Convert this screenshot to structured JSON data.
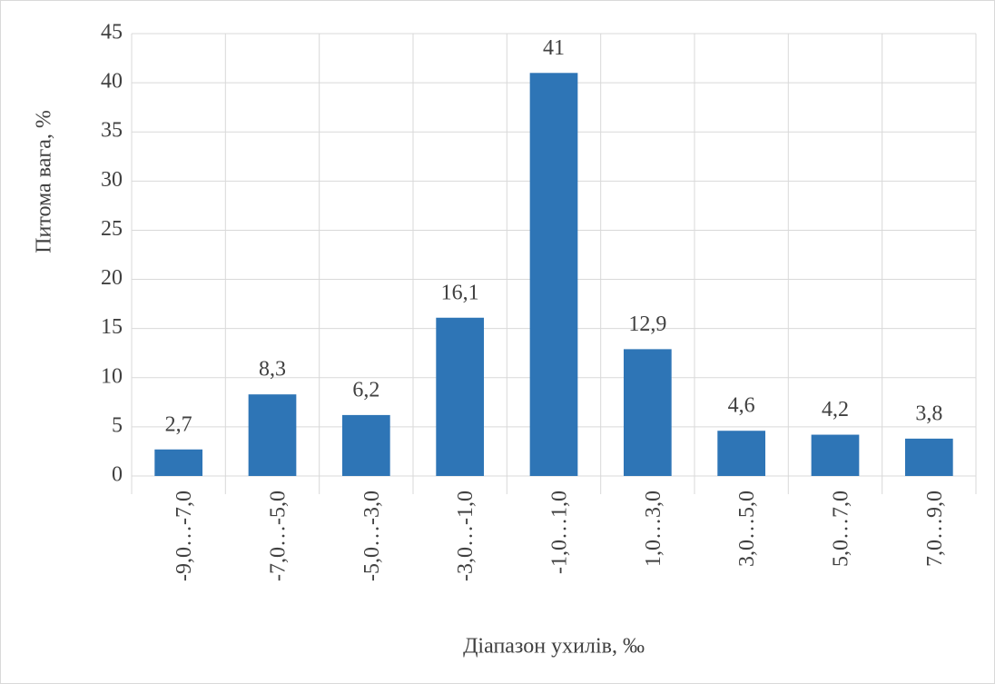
{
  "chart_data": {
    "type": "bar",
    "xlabel": "Діапазон ухилів, ‰",
    "ylabel": "Питома вага, %",
    "categories": [
      "-9,0…-7,0",
      "-7,0…-5,0",
      "-5,0…-3,0",
      "-3,0…-1,0",
      "-1,0…1,0",
      "1,0…3,0",
      "3,0…5,0",
      "5,0…7,0",
      "7,0…9,0"
    ],
    "values": [
      2.7,
      8.3,
      6.2,
      16.1,
      41,
      12.9,
      4.6,
      4.2,
      3.8
    ],
    "value_labels": [
      "2,7",
      "8,3",
      "6,2",
      "16,1",
      "41",
      "12,9",
      "4,6",
      "4,2",
      "3,8"
    ],
    "color": "#2e75b6",
    "ylim": [
      0,
      45
    ],
    "yticks": [
      0,
      5,
      10,
      15,
      20,
      25,
      30,
      35,
      40,
      45
    ],
    "grid": true
  }
}
